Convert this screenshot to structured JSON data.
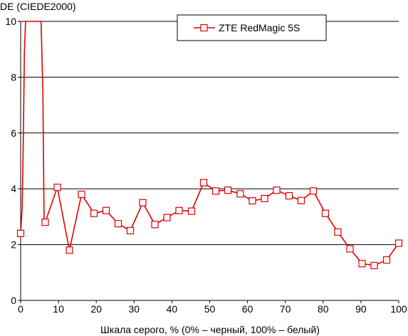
{
  "chart_data": {
    "type": "line",
    "ylabel": "DE (CIEDE2000)",
    "xlabel": "Шкала серого, % (0% – черный, 100% – белый)",
    "xlim": [
      0,
      100
    ],
    "ylim": [
      0,
      10
    ],
    "x_ticks": [
      0,
      10,
      20,
      30,
      40,
      50,
      60,
      70,
      80,
      90,
      100
    ],
    "y_ticks": [
      0,
      2,
      4,
      6,
      8,
      10
    ],
    "grid": {
      "horizontal": true,
      "vertical": false
    },
    "legend_position": "top-center",
    "series": [
      {
        "name": "ZTE RedMagic 5S",
        "color": "#e00000",
        "marker_fill": "#ffffff",
        "line_points": [
          {
            "x": 0.0,
            "y": 2.4
          },
          {
            "x": 0.4,
            "y": 3.3
          },
          {
            "x": 0.7,
            "y": 5.7
          },
          {
            "x": 1.0,
            "y": 8.9
          },
          {
            "x": 1.3,
            "y": 10.0
          },
          {
            "x": 5.4,
            "y": 10.0
          },
          {
            "x": 5.9,
            "y": 7.4
          },
          {
            "x": 6.2,
            "y": 2.8
          },
          {
            "x": 6.5,
            "y": 2.8
          },
          {
            "x": 9.7,
            "y": 4.05
          },
          {
            "x": 12.9,
            "y": 1.8
          },
          {
            "x": 16.1,
            "y": 3.8
          },
          {
            "x": 19.4,
            "y": 3.12
          },
          {
            "x": 22.6,
            "y": 3.22
          },
          {
            "x": 25.8,
            "y": 2.75
          },
          {
            "x": 29.0,
            "y": 2.5
          },
          {
            "x": 32.3,
            "y": 3.5
          },
          {
            "x": 35.5,
            "y": 2.72
          },
          {
            "x": 38.7,
            "y": 2.97
          },
          {
            "x": 41.9,
            "y": 3.22
          },
          {
            "x": 45.2,
            "y": 3.2
          },
          {
            "x": 48.4,
            "y": 4.22
          },
          {
            "x": 51.6,
            "y": 3.92
          },
          {
            "x": 54.8,
            "y": 3.95
          },
          {
            "x": 58.1,
            "y": 3.82
          },
          {
            "x": 61.3,
            "y": 3.57
          },
          {
            "x": 64.5,
            "y": 3.65
          },
          {
            "x": 67.7,
            "y": 3.95
          },
          {
            "x": 71.0,
            "y": 3.75
          },
          {
            "x": 74.2,
            "y": 3.58
          },
          {
            "x": 77.4,
            "y": 3.92
          },
          {
            "x": 80.6,
            "y": 3.12
          },
          {
            "x": 83.9,
            "y": 2.45
          },
          {
            "x": 87.1,
            "y": 1.85
          },
          {
            "x": 90.3,
            "y": 1.32
          },
          {
            "x": 93.5,
            "y": 1.25
          },
          {
            "x": 96.8,
            "y": 1.45
          },
          {
            "x": 100.0,
            "y": 2.05
          }
        ],
        "markers": [
          {
            "x": 0.0,
            "y": 2.4
          },
          {
            "x": 6.5,
            "y": 2.8
          },
          {
            "x": 9.7,
            "y": 4.05
          },
          {
            "x": 12.9,
            "y": 1.8
          },
          {
            "x": 16.1,
            "y": 3.8
          },
          {
            "x": 19.4,
            "y": 3.12
          },
          {
            "x": 22.6,
            "y": 3.22
          },
          {
            "x": 25.8,
            "y": 2.75
          },
          {
            "x": 29.0,
            "y": 2.5
          },
          {
            "x": 32.3,
            "y": 3.5
          },
          {
            "x": 35.5,
            "y": 2.72
          },
          {
            "x": 38.7,
            "y": 2.97
          },
          {
            "x": 41.9,
            "y": 3.22
          },
          {
            "x": 45.2,
            "y": 3.2
          },
          {
            "x": 48.4,
            "y": 4.22
          },
          {
            "x": 51.6,
            "y": 3.92
          },
          {
            "x": 54.8,
            "y": 3.95
          },
          {
            "x": 58.1,
            "y": 3.82
          },
          {
            "x": 61.3,
            "y": 3.57
          },
          {
            "x": 64.5,
            "y": 3.65
          },
          {
            "x": 67.7,
            "y": 3.95
          },
          {
            "x": 71.0,
            "y": 3.75
          },
          {
            "x": 74.2,
            "y": 3.58
          },
          {
            "x": 77.4,
            "y": 3.92
          },
          {
            "x": 80.6,
            "y": 3.12
          },
          {
            "x": 83.9,
            "y": 2.45
          },
          {
            "x": 87.1,
            "y": 1.85
          },
          {
            "x": 90.3,
            "y": 1.32
          },
          {
            "x": 93.5,
            "y": 1.25
          },
          {
            "x": 96.8,
            "y": 1.45
          },
          {
            "x": 100.0,
            "y": 2.05
          }
        ]
      }
    ]
  }
}
